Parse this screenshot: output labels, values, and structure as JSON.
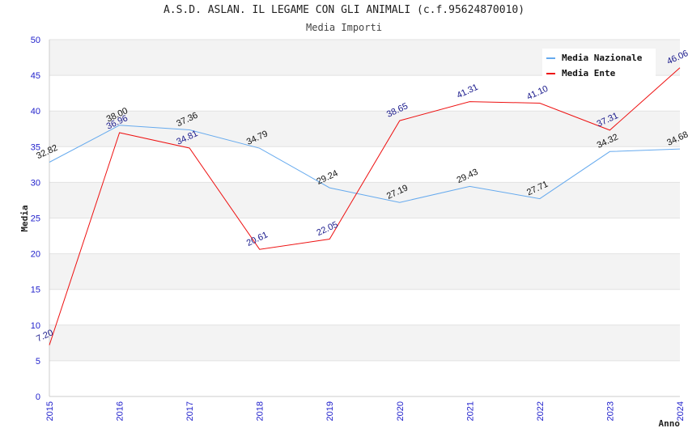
{
  "chart_data": {
    "type": "line",
    "title": "A.S.D. ASLAN. IL LEGAME CON GLI ANIMALI (c.f.95624870010)",
    "subtitle": "Media Importi",
    "xlabel": "Anno",
    "ylabel": "Media",
    "ylim": [
      0,
      50
    ],
    "yticks": [
      0,
      5,
      10,
      15,
      20,
      25,
      30,
      35,
      40,
      45,
      50
    ],
    "x": [
      "2015",
      "2016",
      "2017",
      "2018",
      "2019",
      "2020",
      "2021",
      "2022",
      "2023",
      "2024"
    ],
    "grid": true,
    "legend_position": "top-right",
    "series": [
      {
        "name": "Media Nazionale",
        "color": "#66aaee",
        "values": [
          32.82,
          38.0,
          37.36,
          34.79,
          29.24,
          27.19,
          29.43,
          27.71,
          34.32,
          34.68
        ],
        "labels": [
          "32.82",
          "38.00",
          "37.36",
          "34.79",
          "29.24",
          "27.19",
          "29.43",
          "27.71",
          "34.32",
          "34.68"
        ]
      },
      {
        "name": "Media Ente",
        "color": "#ee1111",
        "values": [
          7.2,
          36.96,
          34.81,
          20.61,
          22.05,
          38.65,
          41.31,
          41.1,
          37.31,
          46.06
        ],
        "labels": [
          "7.20",
          "36.96",
          "34.81",
          "20.61",
          "22.05",
          "38.65",
          "41.31",
          "41.10",
          "37.31",
          "46.06"
        ]
      }
    ]
  }
}
